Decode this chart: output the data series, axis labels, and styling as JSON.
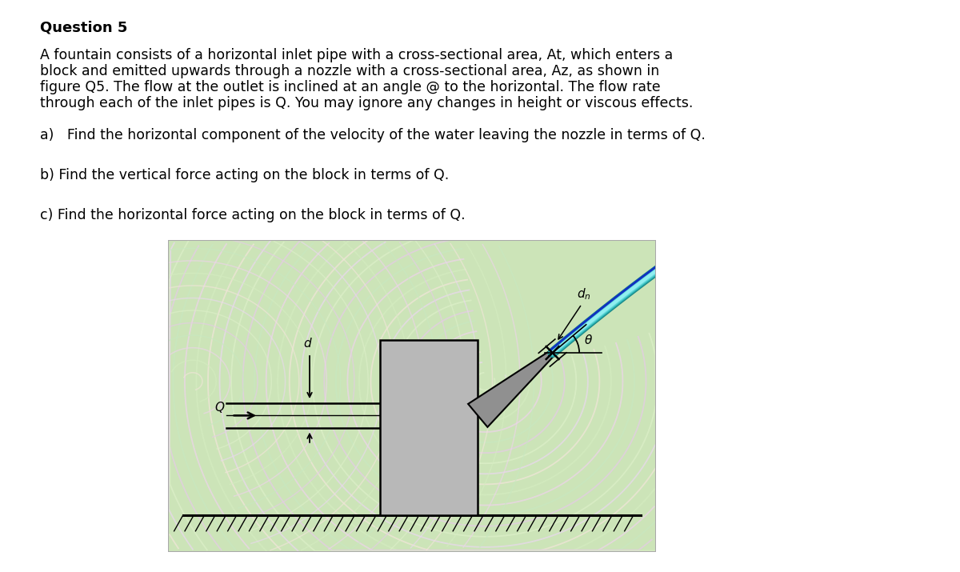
{
  "title": "Question 5",
  "para_line1": "A fountain consists of a horizontal inlet pipe with a cross-sectional area, At, which enters a",
  "para_line2": "block and emitted upwards through a nozzle with a cross-sectional area, Az, as shown in",
  "para_line3": "figure Q5. The flow at the outlet is inclined at an angle @ to the horizontal. The flow rate",
  "para_line4": "through each of the inlet pipes is Q. You may ignore any changes in height or viscous effects.",
  "q_a": "a)   Find the horizontal component of the velocity of the water leaving the nozzle in terms of Q.",
  "q_b": "b) Find the vertical force acting on the block in terms of Q.",
  "q_c": "c) Find the horizontal force acting on the block in terms of Q.",
  "bg_color": "#ffffff",
  "title_fontsize": 13,
  "body_fontsize": 12.5,
  "sub_fontsize": 12.5,
  "swirl_colors": [
    "#dcefc8",
    "#e8d8ec",
    "#f0e4d8",
    "#d4ecc0",
    "#ecd4e8",
    "#c8e8c0",
    "#e4cce4"
  ],
  "pipe_color": "#000000",
  "block_color": "#b8b8b8",
  "nozzle_color": "#909090",
  "ground_color": "#000000",
  "jet_outer": "#20a0a0",
  "jet_mid": "#40c8c8",
  "jet_inner": "#80e8ff",
  "jet_blue": "#1040e0"
}
